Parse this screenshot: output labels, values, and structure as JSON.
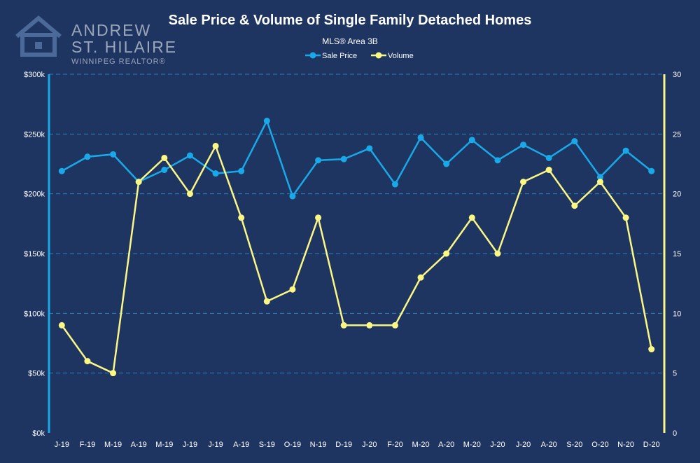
{
  "logo": {
    "line1": "ANDREW",
    "line2": "ST. HILAIRE",
    "line3": "WINNIPEG REALTOR®",
    "icon": "house-icon"
  },
  "colors": {
    "background": "#1f3561",
    "sale_price": "#1aa9e8",
    "volume": "#fbf785",
    "grid": "#2e7fb8"
  },
  "chart_data": {
    "type": "line",
    "title": "Sale Price & Volume of Single Family Detached Homes",
    "subtitle": "MLS® Area 3B",
    "legend_position": "top-center",
    "grid": true,
    "categories": [
      "J-19",
      "F-19",
      "M-19",
      "A-19",
      "M-19",
      "J-19",
      "J-19",
      "A-19",
      "S-19",
      "O-19",
      "N-19",
      "D-19",
      "J-20",
      "F-20",
      "M-20",
      "A-20",
      "M-20",
      "J-20",
      "J-20",
      "A-20",
      "S-20",
      "O-20",
      "N-20",
      "D-20"
    ],
    "y_left": {
      "ylim": [
        0,
        300000
      ],
      "ticks": [
        "$0k",
        "$50k",
        "$100k",
        "$150k",
        "$200k",
        "$250k",
        "$300k"
      ]
    },
    "y_right": {
      "ylim": [
        0,
        30
      ],
      "ticks": [
        "0",
        "5",
        "10",
        "15",
        "20",
        "25",
        "30"
      ]
    },
    "series": [
      {
        "name": "Sale Price",
        "axis": "left",
        "color": "#1aa9e8",
        "values": [
          219000,
          231000,
          233000,
          210000,
          220000,
          232000,
          217000,
          219000,
          261000,
          198000,
          228000,
          229000,
          238000,
          208000,
          247000,
          225000,
          245000,
          228000,
          241000,
          230000,
          244000,
          214000,
          236000,
          219000
        ]
      },
      {
        "name": "Volume",
        "axis": "right",
        "color": "#fbf785",
        "values": [
          9,
          6,
          5,
          21,
          23,
          20,
          24,
          18,
          11,
          12,
          18,
          9,
          9,
          9,
          13,
          15,
          18,
          15,
          21,
          22,
          19,
          21,
          18,
          7
        ]
      }
    ]
  }
}
